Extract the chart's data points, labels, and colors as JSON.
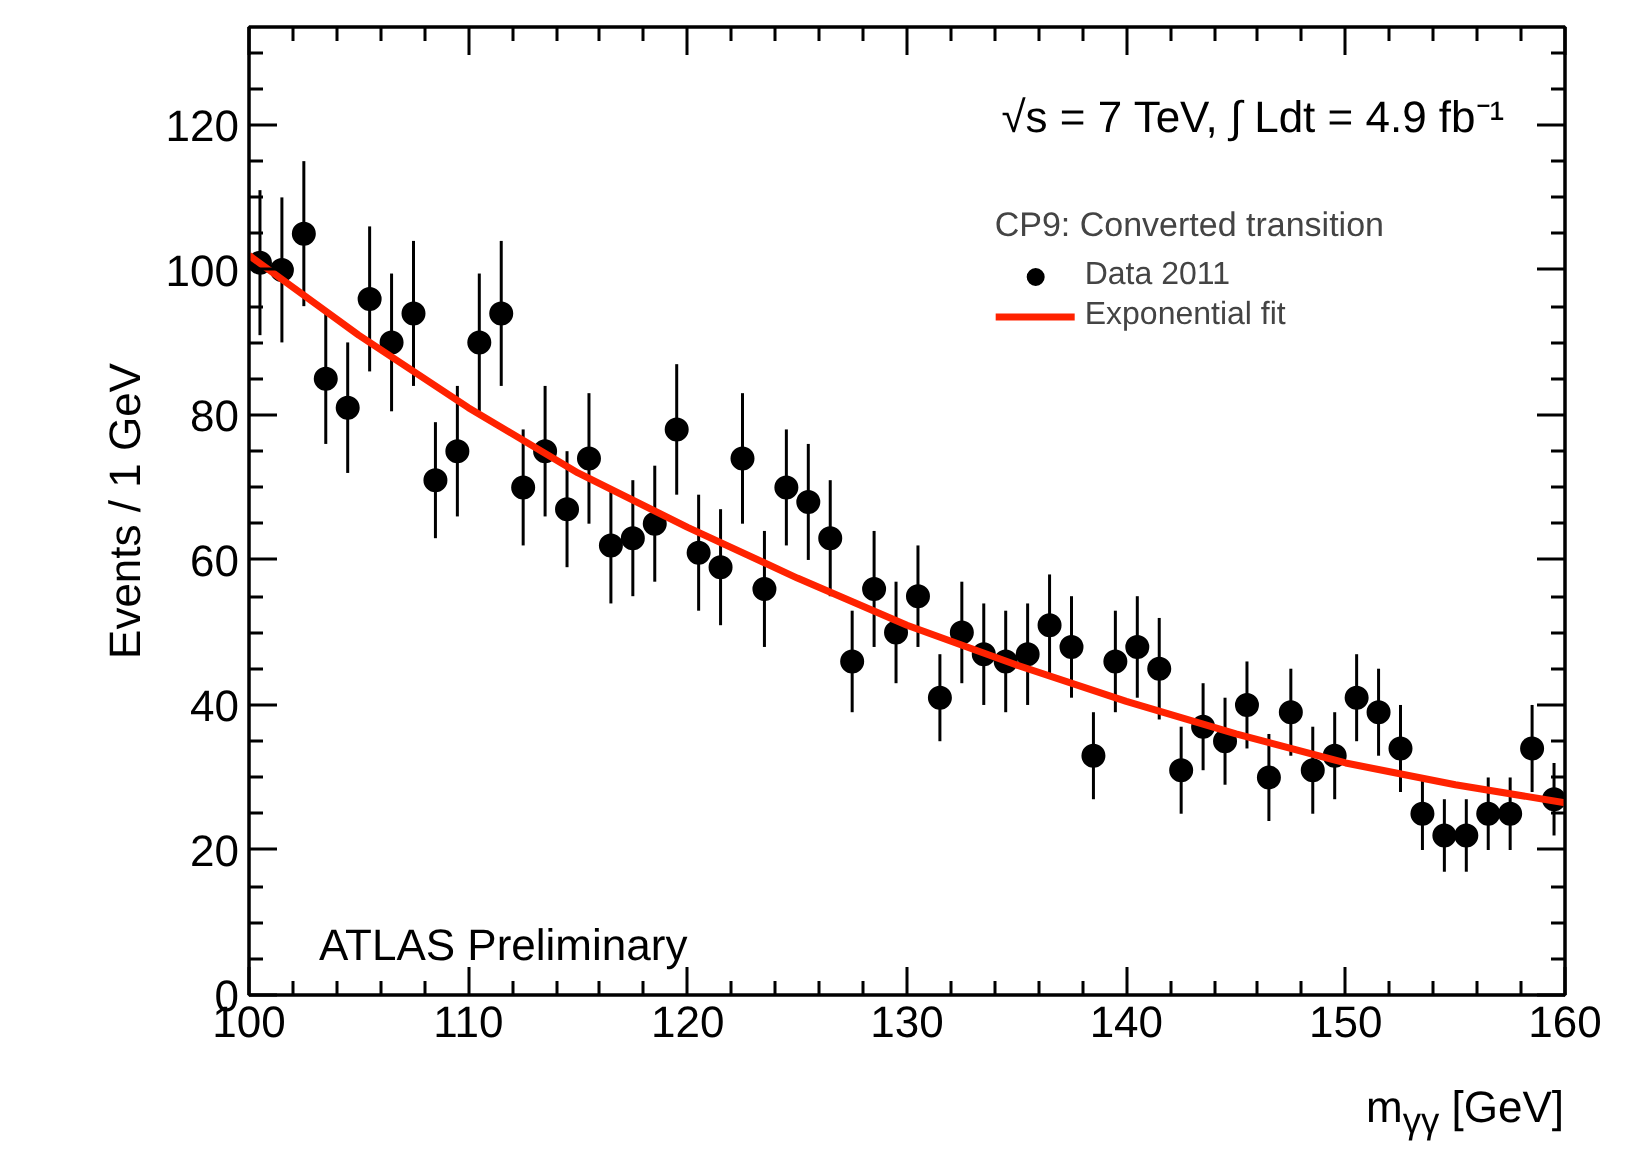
{
  "chart_data": {
    "type": "scatter",
    "xlabel": "m$_{γγ}$ [GeV]",
    "ylabel": "Events / 1 GeV",
    "xlim": [
      100,
      160
    ],
    "ylim": [
      0,
      133.5
    ],
    "xticks": [
      100,
      110,
      120,
      130,
      140,
      150,
      160
    ],
    "yticks": [
      0,
      20,
      40,
      60,
      80,
      100,
      120
    ],
    "grid": false,
    "legend": "top right",
    "legend_title": "CP9: Converted transition",
    "annotations": [
      "√s = 7 TeV, ∫ Ldt = 4.9 fb⁻¹",
      "ATLAS Preliminary"
    ],
    "series": [
      {
        "name": "Data 2011",
        "type": "scatter",
        "color": "#000000",
        "marker": "circle",
        "x": [
          100.5,
          101.5,
          102.5,
          103.5,
          104.5,
          105.5,
          106.5,
          107.5,
          108.5,
          109.5,
          110.5,
          111.5,
          112.5,
          113.5,
          114.5,
          115.5,
          116.5,
          117.5,
          118.5,
          119.5,
          120.5,
          121.5,
          122.5,
          123.5,
          124.5,
          125.5,
          126.5,
          127.5,
          128.5,
          129.5,
          130.5,
          131.5,
          132.5,
          133.5,
          134.5,
          135.5,
          136.5,
          137.5,
          138.5,
          139.5,
          140.5,
          141.5,
          142.5,
          143.5,
          144.5,
          145.5,
          146.5,
          147.5,
          148.5,
          149.5,
          150.5,
          151.5,
          152.5,
          153.5,
          154.5,
          155.5,
          156.5,
          157.5,
          158.5,
          159.5
        ],
        "values": [
          101,
          100,
          105,
          85,
          81,
          96,
          90,
          94,
          71,
          75,
          90,
          94,
          70,
          75,
          67,
          74,
          62,
          63,
          65,
          78,
          61,
          59,
          74,
          56,
          70,
          68,
          63,
          46,
          56,
          50,
          55,
          41,
          50,
          47,
          46,
          47,
          51,
          48,
          33,
          46,
          48,
          45,
          31,
          37,
          35,
          40,
          30,
          39,
          31,
          33,
          41,
          39,
          34,
          25,
          22,
          22,
          25,
          25,
          34,
          27
        ],
        "errors": [
          10,
          10,
          10,
          9,
          9,
          10,
          9.5,
          10,
          8,
          9,
          9.5,
          10,
          8,
          9,
          8,
          9,
          8,
          8,
          8,
          9,
          8,
          8,
          9,
          8,
          8,
          8,
          8,
          7,
          8,
          7,
          7,
          6,
          7,
          7,
          7,
          7,
          7,
          7,
          6,
          7,
          7,
          7,
          6,
          6,
          6,
          6,
          6,
          6,
          6,
          6,
          6,
          6,
          6,
          5,
          5,
          5,
          5,
          5,
          6,
          5
        ]
      },
      {
        "name": "Exponential fit",
        "type": "line",
        "color": "#ff2200",
        "line_style": "solid",
        "x": [
          100,
          105,
          110,
          115,
          120,
          125,
          130,
          135,
          140,
          145,
          150,
          155,
          160
        ],
        "values": [
          102,
          91,
          81,
          72,
          64.5,
          57.5,
          51,
          45.5,
          40.5,
          36,
          32,
          29,
          26.5
        ]
      }
    ]
  }
}
